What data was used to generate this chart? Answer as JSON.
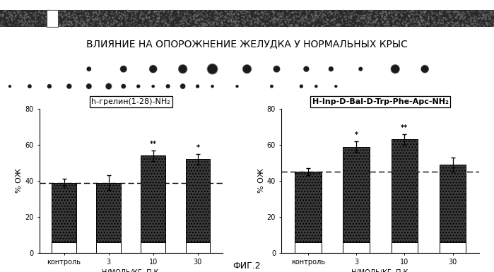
{
  "title": "ВЛИЯНИЕ НА ОПОРОЖНЕНИЕ ЖЕЛУДКА У НОРМАЛЬНЫХ КРЫС",
  "fig_label": "ФИГ.2",
  "left_chart": {
    "title": "h-грелин(1-28)-NH₂",
    "title_bold_part": "(1-28)",
    "categories": [
      "контроль",
      "3",
      "10",
      "30"
    ],
    "values": [
      39,
      39,
      54,
      52
    ],
    "errors": [
      2,
      4,
      3,
      3
    ],
    "dashed_line": 39,
    "ylabel": "% ОЖ",
    "xlabel": "Н/МОЛЬ/КГ, П.К.",
    "ylim": [
      0,
      80
    ],
    "yticks": [
      0,
      20,
      40,
      60,
      80
    ],
    "significance": [
      "",
      "",
      "**",
      "*"
    ]
  },
  "right_chart": {
    "title": "H-Inp-D-Bal-D-Trp-Phe-Apc-NH₂",
    "categories": [
      "контроль",
      "3",
      "10",
      "30"
    ],
    "values": [
      45,
      59,
      63,
      49
    ],
    "errors": [
      2,
      3,
      3,
      4
    ],
    "dashed_line": 45,
    "ylabel": "% ОЖ",
    "xlabel": "Н/МОЛЬ/КГ, П.К.",
    "ylim": [
      0,
      80
    ],
    "yticks": [
      0,
      20,
      40,
      60,
      80
    ],
    "significance": [
      "",
      "*",
      "**",
      ""
    ]
  },
  "bar_color_dark": "#3a3a3a",
  "bar_color_white": "#ffffff",
  "background_color": "#ffffff",
  "top_dots_x": [
    18,
    25,
    31,
    37,
    43,
    50,
    56,
    62,
    67,
    73,
    80,
    86
  ],
  "top_dots_r": [
    0.35,
    0.55,
    0.65,
    0.75,
    0.9,
    0.75,
    0.55,
    0.45,
    0.38,
    0.3,
    0.75,
    0.65
  ],
  "bot_dots_x": [
    2,
    6,
    10,
    14,
    18,
    22,
    25,
    28,
    31,
    34,
    37,
    40,
    43,
    48,
    55,
    61,
    64,
    68
  ],
  "bot_dots_r": [
    0.18,
    0.28,
    0.32,
    0.38,
    0.42,
    0.48,
    0.35,
    0.25,
    0.2,
    0.3,
    0.4,
    0.25,
    0.2,
    0.18,
    0.22,
    0.25,
    0.2,
    0.18
  ],
  "title_fontsize": 10,
  "axis_fontsize": 7,
  "tick_fontsize": 7,
  "sig_fontsize": 7,
  "fig_label_fontsize": 9
}
